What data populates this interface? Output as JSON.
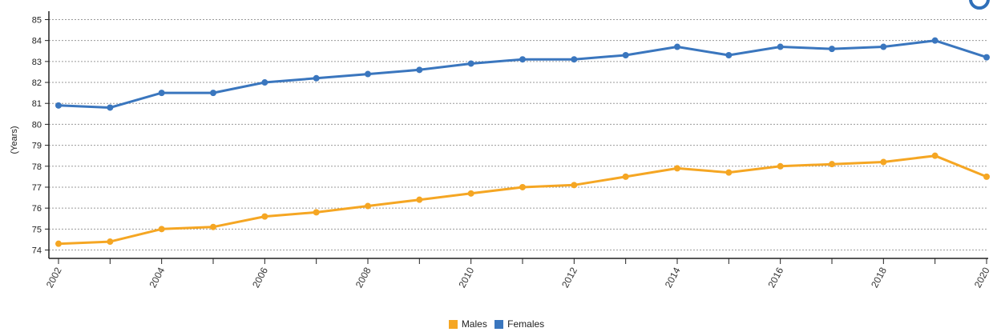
{
  "colors": {
    "males": "#f5a623",
    "females": "#3a76be"
  },
  "legend": [
    {
      "key": "males",
      "label": "Males"
    },
    {
      "key": "females",
      "label": "Females"
    }
  ],
  "chart_data": {
    "type": "line",
    "title": "",
    "xlabel": "",
    "ylabel": "(Years)",
    "x": [
      2002,
      2003,
      2004,
      2005,
      2006,
      2007,
      2008,
      2009,
      2010,
      2011,
      2012,
      2013,
      2014,
      2015,
      2016,
      2017,
      2018,
      2019,
      2020
    ],
    "x_tick_labels": [
      "2002",
      "2004",
      "2006",
      "2008",
      "2010",
      "2012",
      "2014",
      "2016",
      "2018",
      "2020"
    ],
    "ylim": [
      73.6,
      85.4
    ],
    "y_ticks": [
      74,
      75,
      76,
      77,
      78,
      79,
      80,
      81,
      82,
      83,
      84,
      85
    ],
    "grid": true,
    "legend_position": "bottom",
    "series": [
      {
        "key": "females",
        "name": "Females",
        "values": [
          80.9,
          80.8,
          81.5,
          81.5,
          82.0,
          82.2,
          82.4,
          82.6,
          82.9,
          83.1,
          83.1,
          83.3,
          83.7,
          83.3,
          83.7,
          83.6,
          83.7,
          84.0,
          83.2
        ]
      },
      {
        "key": "males",
        "name": "Males",
        "values": [
          74.3,
          74.4,
          75.0,
          75.1,
          75.6,
          75.8,
          76.1,
          76.4,
          76.7,
          77.0,
          77.1,
          77.5,
          77.9,
          77.7,
          78.0,
          78.1,
          78.2,
          78.5,
          77.5
        ]
      }
    ]
  }
}
